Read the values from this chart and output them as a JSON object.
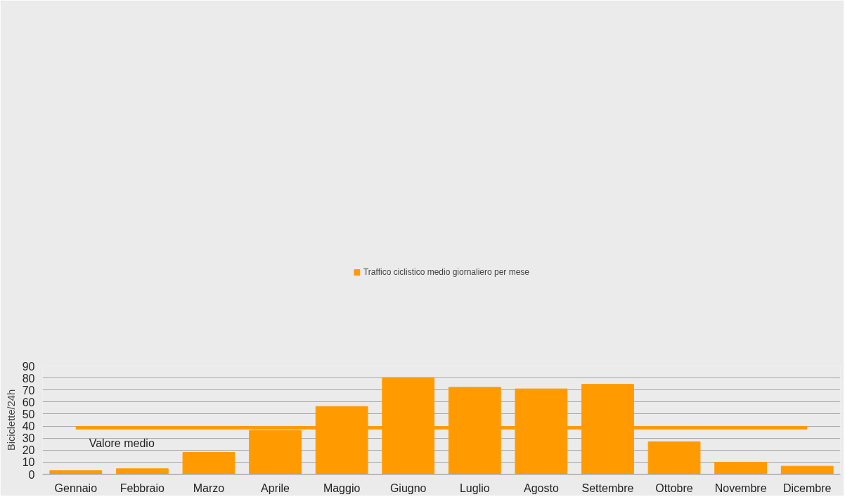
{
  "chart_data": {
    "type": "bar",
    "ylabel": "Biciclette/24h",
    "categories": [
      "Gennaio",
      "Febbraio",
      "Marzo",
      "Aprile",
      "Maggio",
      "Giugno",
      "Luglio",
      "Agosto",
      "Settembre",
      "Ottobre",
      "Novembre",
      "Dicembre"
    ],
    "series": [
      {
        "name": "Traffico ciclistico medio giornaliero per mese",
        "color": "#ff9b00",
        "values": [
          2.9,
          4.5,
          18.1,
          36.3,
          56.3,
          80.4,
          72.2,
          70.9,
          74.7,
          26.9,
          9.9,
          6.6
        ]
      }
    ],
    "ylim": [
      0,
      90
    ],
    "yticks": [
      0,
      10,
      20,
      30,
      40,
      50,
      60,
      70,
      80,
      90
    ],
    "grid": "y",
    "legend": "top",
    "ref_lines": [
      {
        "axis": "y",
        "value": 38.5,
        "label": "Valore medio",
        "color": "#ff9b00"
      }
    ]
  }
}
